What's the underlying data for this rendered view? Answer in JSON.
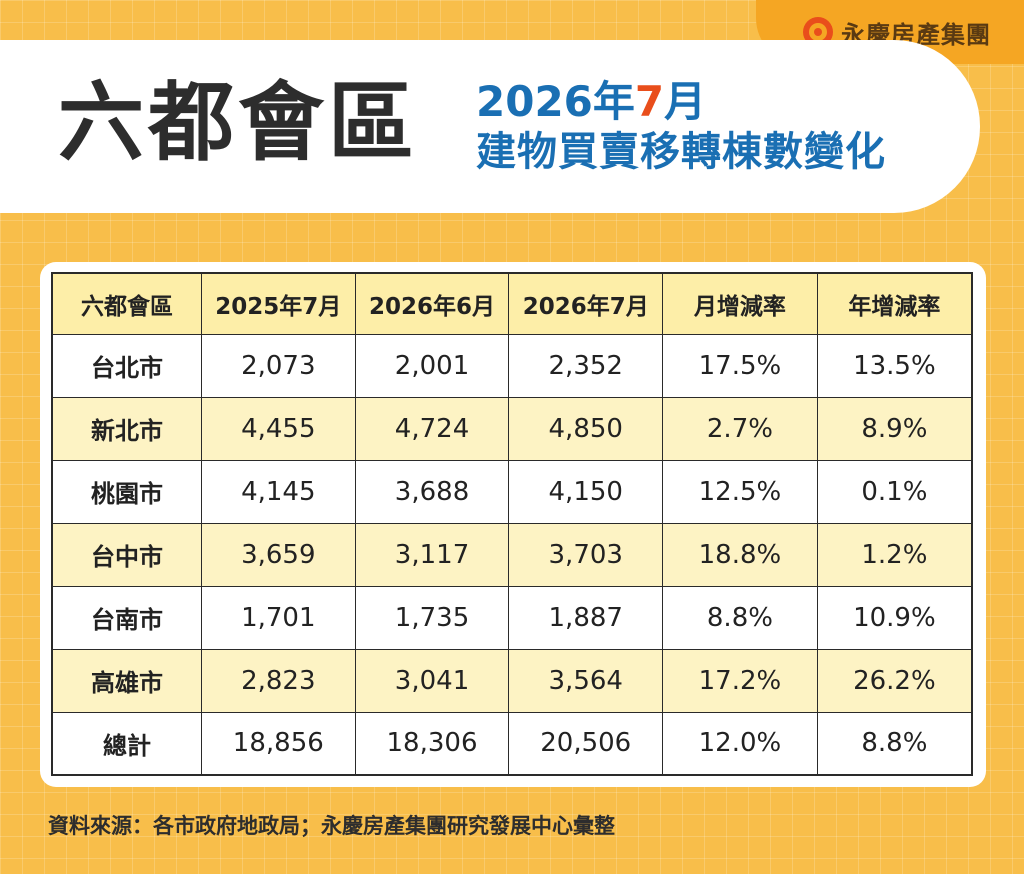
{
  "brand": {
    "logo_icon": "yungching-logo-icon",
    "name": "永慶房產集團"
  },
  "banner": {
    "title": "六都會區",
    "subtitle_year": "2026年",
    "subtitle_month": "7",
    "subtitle_month_suffix": "月",
    "subtitle_line2": "建物買賣移轉棟數變化"
  },
  "table": {
    "headers": [
      "六都會區",
      "2025年7月",
      "2026年6月",
      "2026年7月",
      "月增減率",
      "年增減率"
    ],
    "rows": [
      [
        "台北市",
        "2,073",
        "2,001",
        "2,352",
        "17.5%",
        "13.5%"
      ],
      [
        "新北市",
        "4,455",
        "4,724",
        "4,850",
        "2.7%",
        "8.9%"
      ],
      [
        "桃園市",
        "4,145",
        "3,688",
        "4,150",
        "12.5%",
        "0.1%"
      ],
      [
        "台中市",
        "3,659",
        "3,117",
        "3,703",
        "18.8%",
        "1.2%"
      ],
      [
        "台南市",
        "1,701",
        "1,735",
        "1,887",
        "8.8%",
        "10.9%"
      ],
      [
        "高雄市",
        "2,823",
        "3,041",
        "3,564",
        "17.2%",
        "26.2%"
      ],
      [
        "總計",
        "18,856",
        "18,306",
        "20,506",
        "12.0%",
        "8.8%"
      ]
    ]
  },
  "source": "資料來源：各市政府地政局；永慶房產集團研究發展中心彙整",
  "colors": {
    "background": "#f8be4a",
    "brand_tab": "#f5a623",
    "title_blue": "#1a6fb3",
    "accent_orange": "#e94e1b",
    "header_fill": "#fdeea8",
    "alt_row_fill": "#fdf3c4"
  }
}
